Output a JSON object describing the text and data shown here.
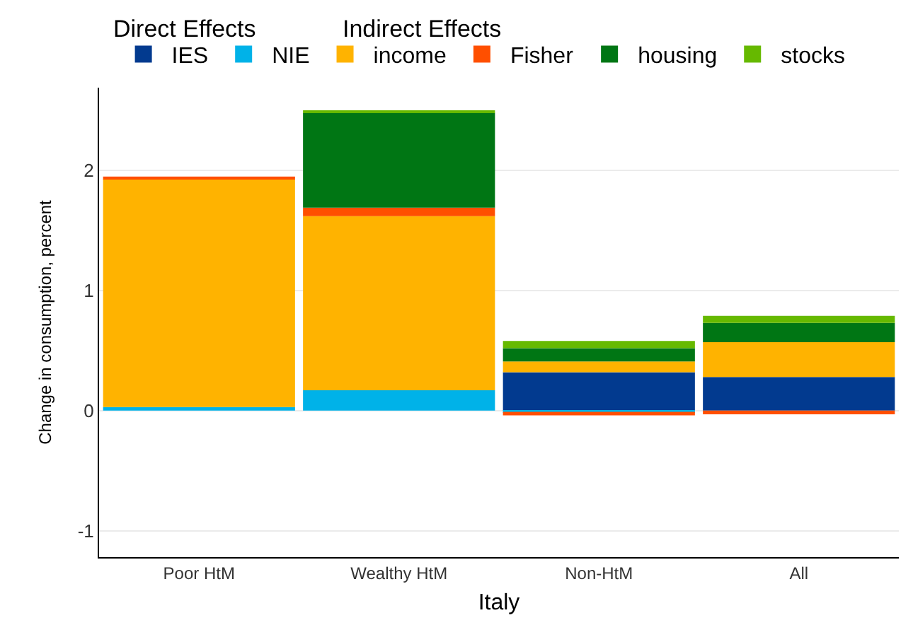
{
  "chart_data": {
    "type": "bar",
    "stacked": true,
    "xlabel": "Italy",
    "ylabel": "Change in consumption, percent",
    "annotations": [
      "Direct Effects",
      "Indirect Effects"
    ],
    "categories": [
      "Poor HtM",
      "Wealthy HtM",
      "Non-HtM",
      "All"
    ],
    "series": [
      {
        "name": "IES",
        "color": "#023a8f",
        "values": [
          0.0,
          0.0,
          0.32,
          0.28
        ]
      },
      {
        "name": "NIE",
        "color": "#00b2e8",
        "values": [
          0.03,
          0.17,
          -0.01,
          0.0
        ]
      },
      {
        "name": "income",
        "color": "#ffb300",
        "values": [
          1.9,
          1.45,
          0.09,
          0.29
        ]
      },
      {
        "name": "Fisher",
        "color": "#ff4f00",
        "values": [
          0.02,
          0.07,
          -0.03,
          -0.03
        ]
      },
      {
        "name": "housing",
        "color": "#007614",
        "values": [
          0.0,
          0.79,
          0.11,
          0.16
        ]
      },
      {
        "name": "stocks",
        "color": "#66b900",
        "values": [
          0.0,
          0.02,
          0.06,
          0.06
        ]
      }
    ],
    "ylim": [
      -1.22,
      2.69
    ],
    "yticks": [
      -1,
      0,
      1,
      2
    ],
    "grid": "y",
    "legend": "top"
  }
}
